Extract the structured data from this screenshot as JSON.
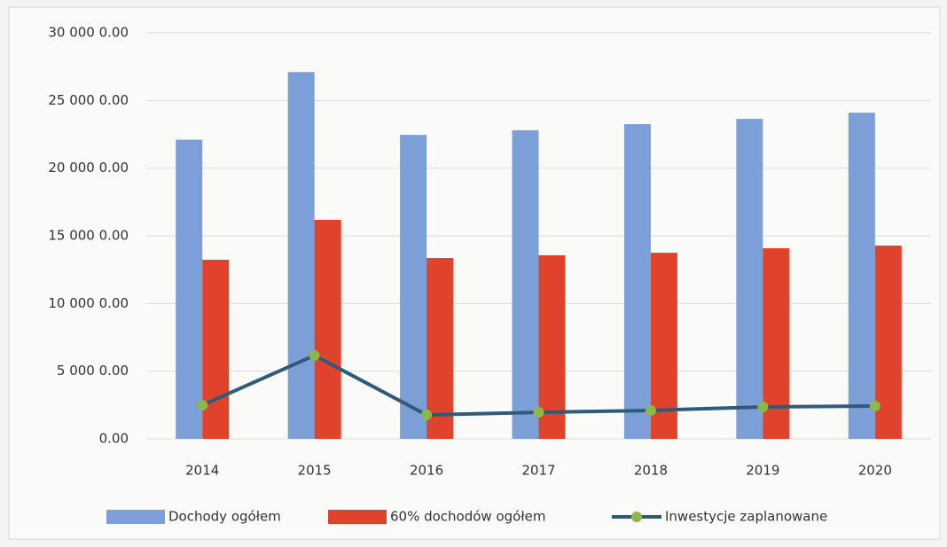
{
  "chart_data": {
    "type": "bar",
    "categories": [
      "2014",
      "2015",
      "2016",
      "2017",
      "2018",
      "2019",
      "2020"
    ],
    "series": [
      {
        "name": "Dochody ogółem",
        "type": "bar",
        "color": "#7b9fd6",
        "values": [
          22100,
          27100,
          22460,
          22800,
          23250,
          23640,
          24100
        ]
      },
      {
        "name": "60% dochodów ogółem",
        "type": "bar",
        "color": "#e0432b",
        "values": [
          13230,
          16180,
          13360,
          13560,
          13750,
          14080,
          14280
        ]
      },
      {
        "name": "Inwestycje zaplanowane",
        "type": "line",
        "color": "#2e5b7a",
        "marker_color": "#8cb84a",
        "values": [
          2490,
          6160,
          1770,
          1960,
          2100,
          2360,
          2420
        ]
      }
    ],
    "ylim": [
      0,
      30000
    ],
    "yticks": [
      {
        "value": 0,
        "label": "0.00"
      },
      {
        "value": 5000,
        "label": "5 000 0.00"
      },
      {
        "value": 10000,
        "label": "10 000 0.00"
      },
      {
        "value": 15000,
        "label": "15 000 0.00"
      },
      {
        "value": 20000,
        "label": "20 000 0.00"
      },
      {
        "value": 25000,
        "label": "25 000 0.00"
      },
      {
        "value": 30000,
        "label": "30 000 0.00"
      }
    ],
    "grid": true,
    "legend": "bottom"
  }
}
